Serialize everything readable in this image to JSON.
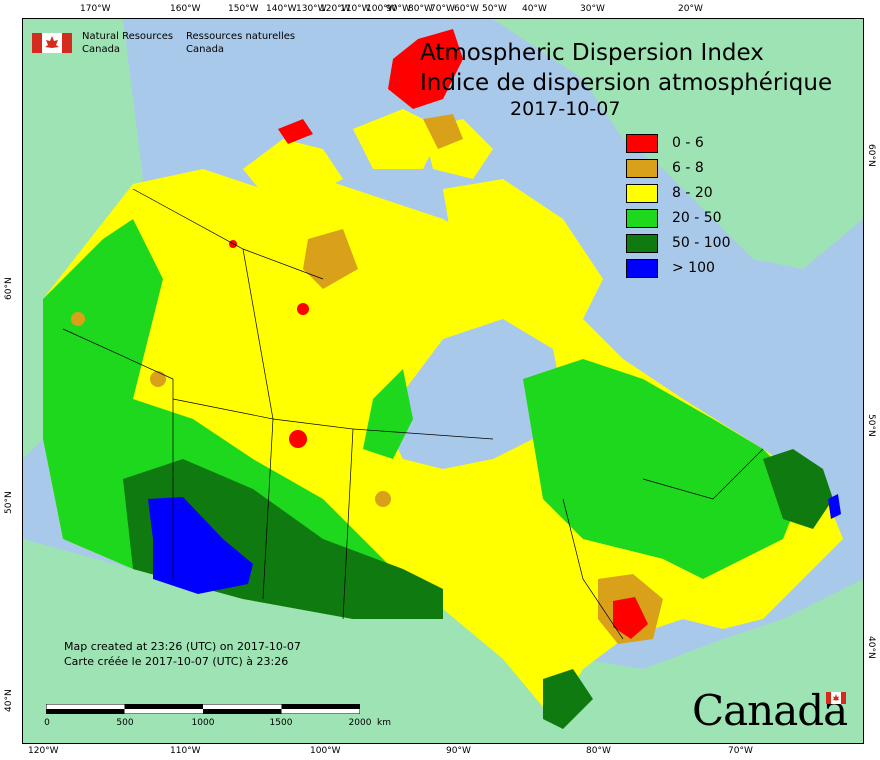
{
  "agency": {
    "name_en_line1": "Natural Resources",
    "name_en_line2": "Canada",
    "name_fr_line1": "Ressources naturelles",
    "name_fr_line2": "Canada"
  },
  "title": {
    "line1": "Atmospheric Dispersion Index",
    "line2": "Indice de dispersion atmosphérique",
    "date": "2017-10-07"
  },
  "legend": [
    {
      "label": "0 - 6",
      "color": "#ff0000"
    },
    {
      "label": "6 - 8",
      "color": "#d9a01a"
    },
    {
      "label": "8 - 20",
      "color": "#ffff00"
    },
    {
      "label": "20 - 50",
      "color": "#1ed81e"
    },
    {
      "label": "50 - 100",
      "color": "#0f7a0f"
    },
    {
      "label": "> 100",
      "color": "#0000ff"
    }
  ],
  "ticks": {
    "top": [
      "170°W",
      "160°W",
      "150°W",
      "140°W",
      "130°W",
      "120°W",
      "110°W",
      "100°W",
      "90°W",
      "80°W",
      "70°W",
      "60°W",
      "50°W",
      "40°W",
      "30°W",
      "20°W"
    ],
    "bottom": [
      "120°W",
      "110°W",
      "100°W",
      "90°W",
      "80°W",
      "70°W"
    ],
    "left": [
      "60°N",
      "50°N",
      "40°N"
    ],
    "right": [
      "60°N",
      "50°N",
      "40°N"
    ]
  },
  "credit": {
    "line1": "Map created at 23:26 (UTC) on 2017-10-07",
    "line2": "Carte créée le 2017-10-07 (UTC) à 23:26"
  },
  "scale": {
    "labels": [
      "0",
      "500",
      "1000",
      "1500",
      "2000"
    ],
    "unit": "km"
  },
  "wordmark": "Canada",
  "colors": {
    "ocean": "#a9c9ea",
    "foreign_land": "#9ee3b4",
    "border": "#000000"
  }
}
